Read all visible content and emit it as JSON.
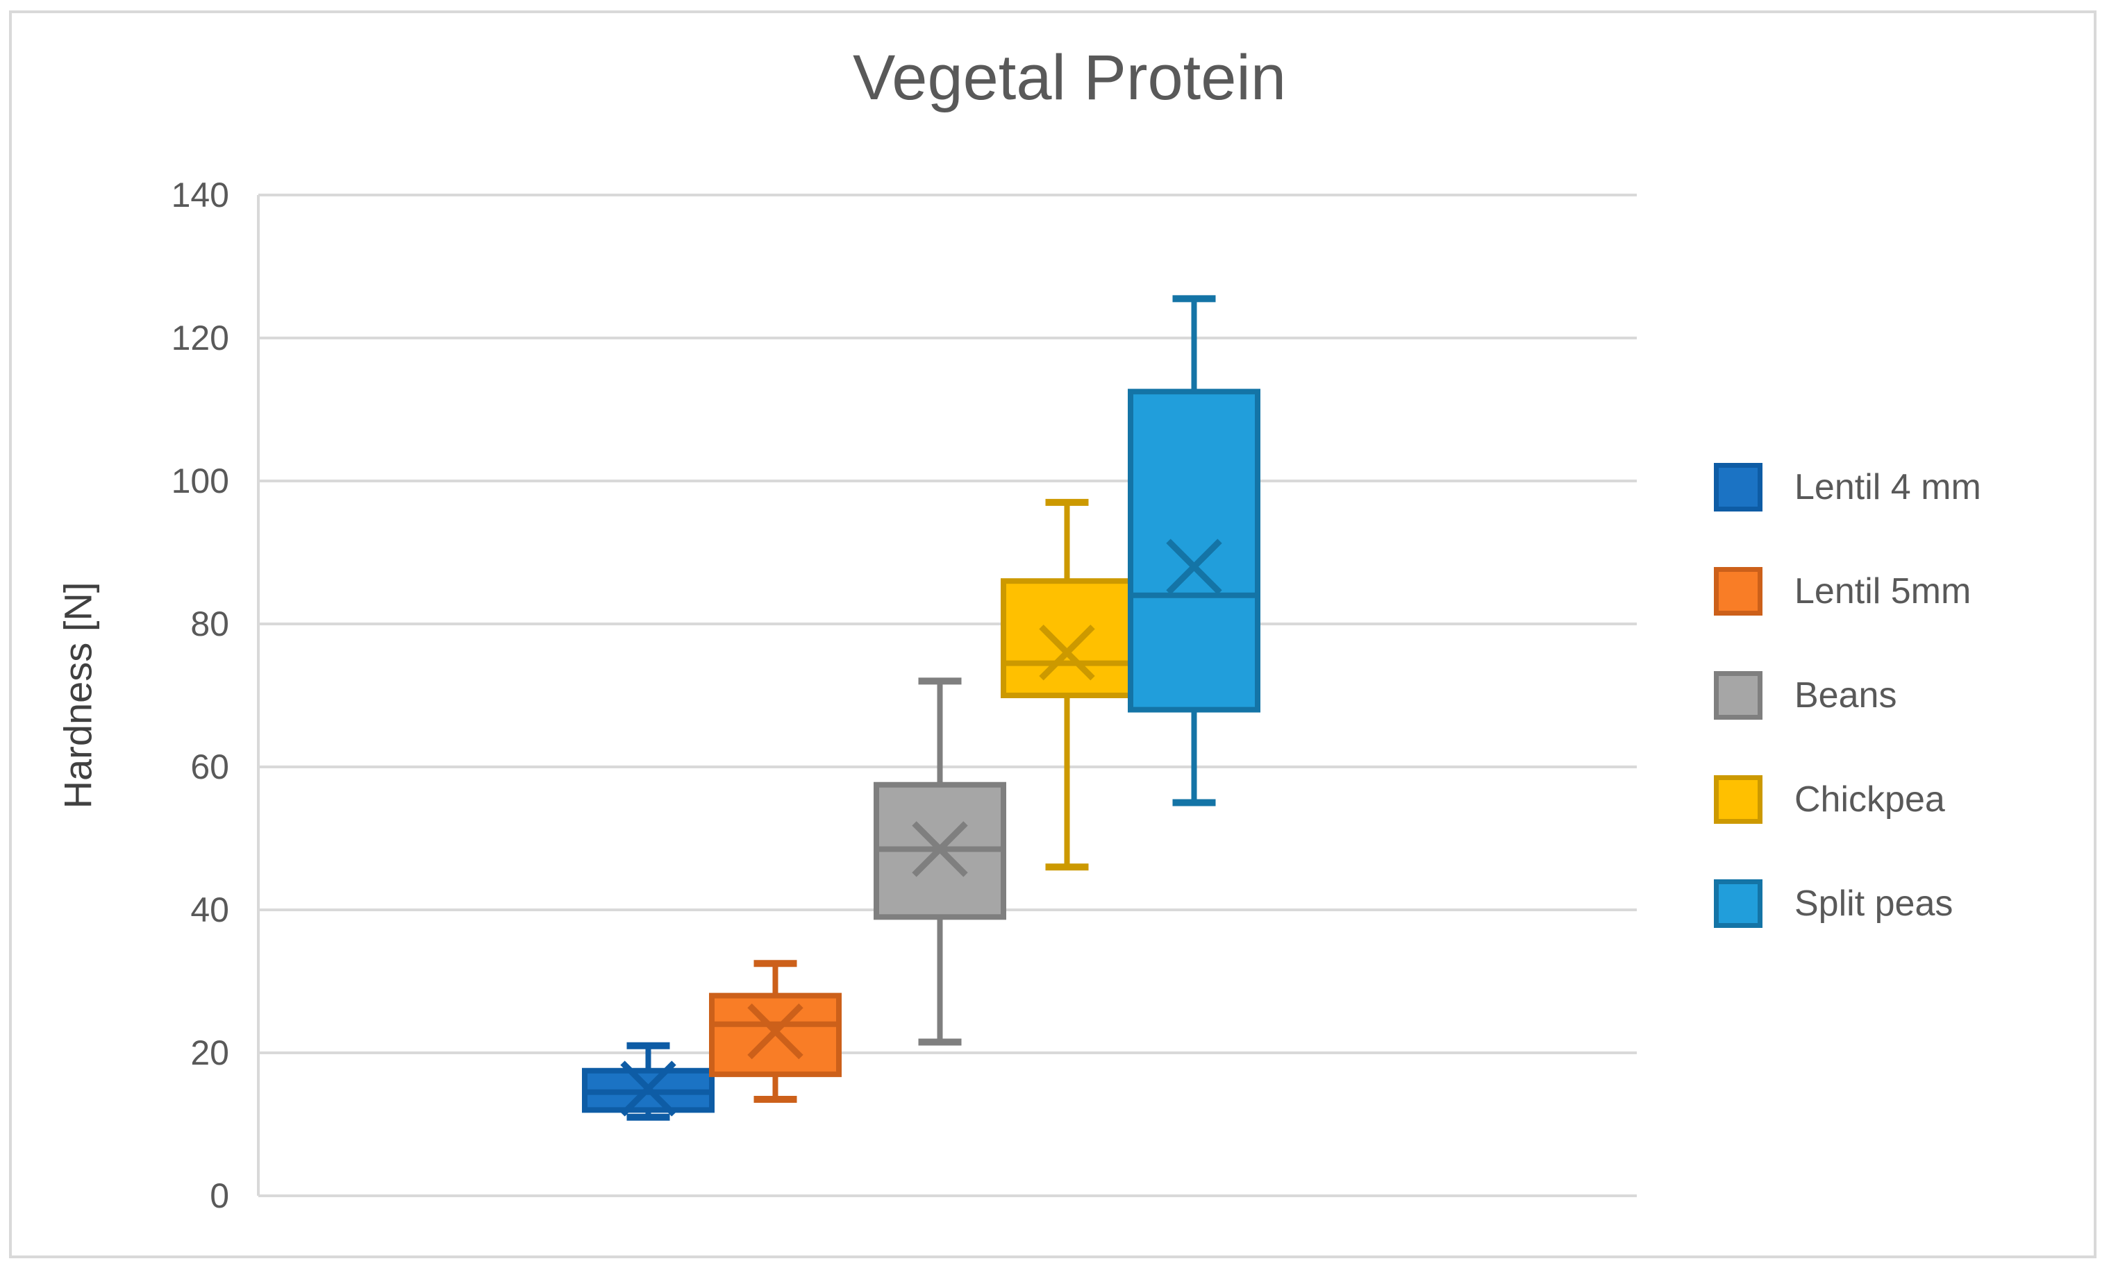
{
  "chart_data": {
    "type": "boxplot",
    "title": "Vegetal Protein",
    "ylabel": "Hardness [N]",
    "xlabel": "",
    "ylim": [
      0,
      140
    ],
    "ytick_interval": 20,
    "yticks": [
      0,
      20,
      40,
      60,
      80,
      100,
      120,
      140
    ],
    "grid": "horizontal",
    "legend_position": "right",
    "text_color": "#595959",
    "gridline_color": "#D9D9D9",
    "background_color": "#FFFFFF",
    "series": [
      {
        "name": "Lentil 4 mm",
        "fill": "#1B73C4",
        "stroke": "#0E5CA5",
        "whisker_low": 11,
        "q1": 12,
        "median": 14.5,
        "mean": 15,
        "q3": 17.5,
        "whisker_high": 21
      },
      {
        "name": "Lentil 5mm",
        "fill": "#F97D26",
        "stroke": "#CC601A",
        "whisker_low": 13.5,
        "q1": 17,
        "median": 24,
        "mean": 23,
        "q3": 28,
        "whisker_high": 32.5
      },
      {
        "name": "Beans",
        "fill": "#A6A6A6",
        "stroke": "#7F7F7F",
        "whisker_low": 21.5,
        "q1": 39,
        "median": 48.5,
        "mean": 48.5,
        "q3": 57.5,
        "whisker_high": 72
      },
      {
        "name": "Chickpea",
        "fill": "#FFC000",
        "stroke": "#CC9900",
        "whisker_low": 46,
        "q1": 70,
        "median": 74.5,
        "mean": 76,
        "q3": 86,
        "whisker_high": 97
      },
      {
        "name": "Split peas",
        "fill": "#219EDB",
        "stroke": "#1474A6",
        "whisker_low": 55,
        "q1": 68,
        "median": 84,
        "mean": 88,
        "q3": 112.5,
        "whisker_high": 125.5
      }
    ]
  }
}
